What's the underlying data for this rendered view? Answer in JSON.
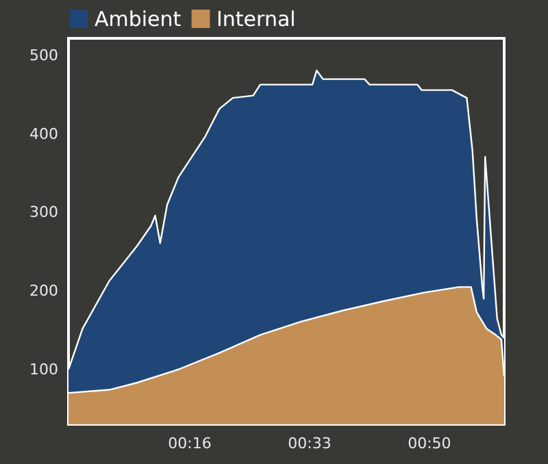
{
  "chart_data": {
    "type": "area",
    "legend": "top",
    "xlim": [
      -1.1,
      60.7
    ],
    "ylim": [
      30,
      522
    ],
    "xticks": [
      {
        "value": 16,
        "label": "00:16"
      },
      {
        "value": 33,
        "label": "00:33"
      },
      {
        "value": 50,
        "label": "00:50"
      }
    ],
    "yticks": [
      100,
      200,
      300,
      400,
      500
    ],
    "series": [
      {
        "name": "Ambient",
        "color": "#1f4677",
        "x": [
          -1.1,
          0.9,
          4.7,
          8.6,
          10.6,
          11.2,
          11.9,
          12.9,
          14.5,
          16.4,
          18.3,
          20.3,
          22.2,
          25.1,
          26.1,
          33.5,
          34.1,
          35.0,
          40.9,
          41.6,
          48.4,
          49.0,
          53.3,
          55.4,
          56.2,
          56.8,
          57.6,
          57.8,
          58.0,
          59.7,
          60.3,
          60.7
        ],
        "values": [
          100,
          152,
          213,
          257,
          283,
          296,
          261,
          310,
          345,
          371,
          397,
          432,
          446,
          449,
          463,
          463,
          481,
          470,
          470,
          463,
          463,
          456,
          456,
          446,
          379,
          292,
          205,
          190,
          371,
          165,
          144,
          140
        ]
      },
      {
        "name": "Internal",
        "color": "#c48f55",
        "x": [
          -1.1,
          4.7,
          8.6,
          14.5,
          20.3,
          26.1,
          31.9,
          37.8,
          43.6,
          49.4,
          54.3,
          56.0,
          56.8,
          58.2,
          59.5,
          60.3,
          60.7
        ],
        "values": [
          70,
          74,
          83,
          100,
          121,
          144,
          161,
          175,
          187,
          198,
          205,
          205,
          173,
          152,
          144,
          138,
          91
        ]
      }
    ]
  }
}
